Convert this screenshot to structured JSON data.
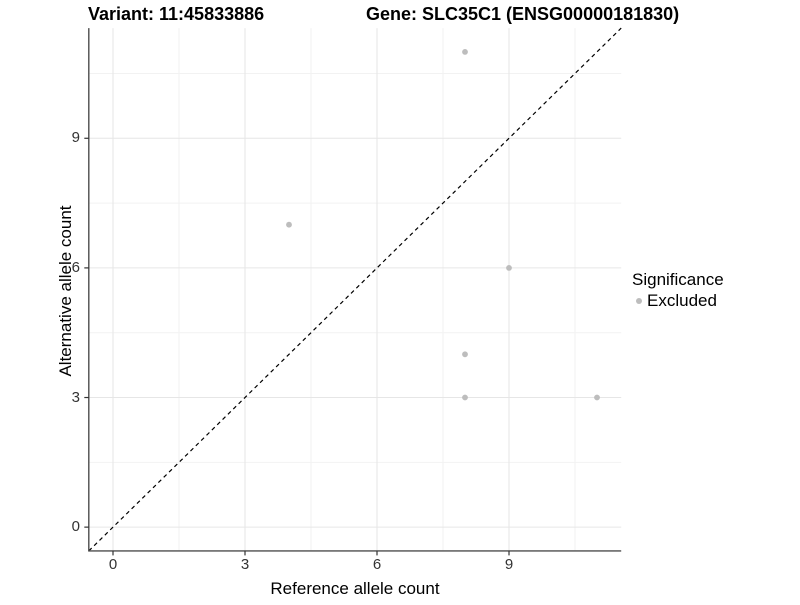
{
  "title": {
    "variant": "Variant: 11:45833886",
    "gene": "Gene: SLC35C1 (ENSG00000181830)"
  },
  "axes": {
    "x_label": "Reference allele count",
    "y_label": "Alternative allele count"
  },
  "legend": {
    "title": "Significance",
    "items": [
      {
        "label": "Excluded",
        "color": "#bdbdbd"
      }
    ]
  },
  "colors": {
    "point": "#bdbdbd",
    "grid_major": "#e6e6e6",
    "grid_minor": "#f2f2f2",
    "axis_line": "#4d4d4d",
    "tick_mark": "#333333",
    "reference_line": "#000000",
    "background": "#ffffff"
  },
  "chart_data": {
    "type": "scatter",
    "title": "Variant: 11:45833886   Gene: SLC35C1 (ENSG00000181830)",
    "xlabel": "Reference allele count",
    "ylabel": "Alternative allele count",
    "xlim": [
      -0.55,
      11.55
    ],
    "ylim": [
      -0.55,
      11.55
    ],
    "x_ticks": [
      0,
      3,
      6,
      9
    ],
    "y_ticks": [
      0,
      3,
      6,
      9
    ],
    "x_minor_ticks": [
      1.5,
      4.5,
      7.5,
      10.5
    ],
    "y_minor_ticks": [
      1.5,
      4.5,
      7.5,
      10.5
    ],
    "grid": true,
    "legend_position": "right",
    "series": [
      {
        "name": "Excluded",
        "color": "#bdbdbd",
        "points": [
          [
            4,
            7
          ],
          [
            8,
            11
          ],
          [
            9,
            6
          ],
          [
            8,
            4
          ],
          [
            8,
            3
          ],
          [
            11,
            3
          ]
        ]
      }
    ],
    "reference_line": {
      "kind": "identity",
      "slope": 1,
      "intercept": 0,
      "style": "dashed"
    }
  }
}
